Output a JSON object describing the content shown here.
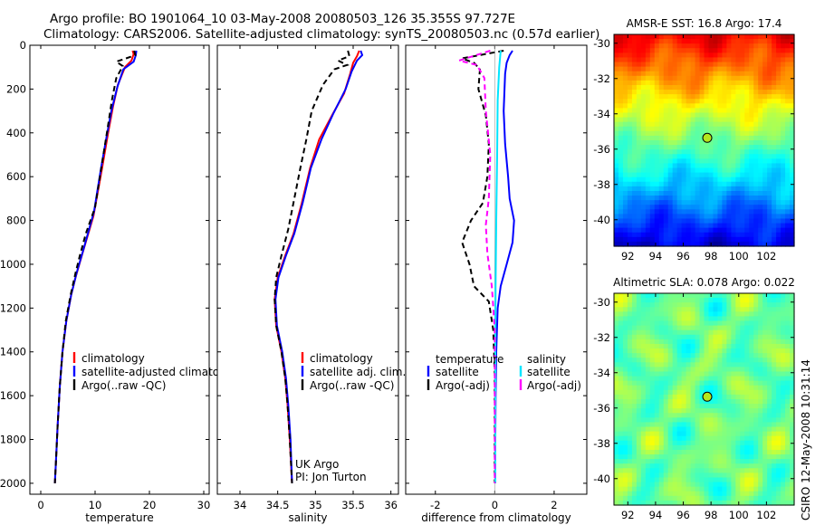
{
  "header": {
    "title_line1": "Argo profile: BO 1901064_10 03-May-2008 20080503_126 35.355S 97.727E",
    "title_line2": "Climatology: CARS2006. Satellite-adjusted climatology: synTS_20080503.nc (0.57d earlier)"
  },
  "side_label": "CSIRO 12-May-2008 10:31:14",
  "colors": {
    "climatology": "#ff0000",
    "satellite": "#0000ff",
    "argo": "#000000",
    "salinity_satellite": "#00e5ff",
    "salinity_argo": "#ff00ff"
  },
  "chart_data": [
    {
      "type": "line",
      "id": "temperature",
      "xlabel": "temperature",
      "ylabel": "",
      "xlim": [
        -2,
        31
      ],
      "ylim": [
        2050,
        0
      ],
      "xticks": [
        0,
        10,
        20,
        30
      ],
      "yticks": [
        0,
        200,
        400,
        600,
        800,
        1000,
        1200,
        1400,
        1600,
        1800,
        2000
      ],
      "legend": {
        "placement": "lower-right",
        "entries": [
          "climatology",
          "satellite-adjusted climatology",
          "Argo(..raw -QC)"
        ]
      },
      "series": [
        {
          "name": "climatology",
          "color": "#ff0000",
          "dash": "",
          "points": [
            [
              16.9,
              25
            ],
            [
              17.1,
              40
            ],
            [
              16.9,
              55
            ],
            [
              16.7,
              70
            ],
            [
              15.5,
              100
            ],
            [
              14.2,
              180
            ],
            [
              13.3,
              280
            ],
            [
              12.4,
              400
            ],
            [
              11.3,
              560
            ],
            [
              9.7,
              780
            ],
            [
              7.8,
              940
            ],
            [
              6.4,
              1060
            ],
            [
              5.6,
              1140
            ],
            [
              4.7,
              1260
            ],
            [
              4,
              1400
            ],
            [
              3.5,
              1560
            ],
            [
              3.1,
              1740
            ],
            [
              2.8,
              1900
            ],
            [
              2.6,
              2000
            ]
          ]
        },
        {
          "name": "satellite-adjusted climatology",
          "color": "#0000ff",
          "dash": "",
          "points": [
            [
              17.6,
              25
            ],
            [
              17.5,
              45
            ],
            [
              17.1,
              75
            ],
            [
              15.2,
              110
            ],
            [
              14.1,
              190
            ],
            [
              13,
              300
            ],
            [
              12.1,
              420
            ],
            [
              11.1,
              560
            ],
            [
              9.8,
              760
            ],
            [
              8,
              920
            ],
            [
              6.6,
              1040
            ],
            [
              5.6,
              1140
            ],
            [
              4.7,
              1260
            ],
            [
              4,
              1400
            ],
            [
              3.5,
              1560
            ],
            [
              3.1,
              1740
            ],
            [
              2.8,
              1900
            ],
            [
              2.6,
              2000
            ]
          ]
        },
        {
          "name": "Argo(..raw -QC)",
          "color": "#000000",
          "dash": "6,4",
          "points": [
            [
              17.2,
              25
            ],
            [
              17.4,
              45
            ],
            [
              15.7,
              60
            ],
            [
              13.9,
              75
            ],
            [
              15.1,
              95
            ],
            [
              13.9,
              150
            ],
            [
              13.1,
              250
            ],
            [
              12.3,
              380
            ],
            [
              11.4,
              520
            ],
            [
              10,
              740
            ],
            [
              8.3,
              860
            ],
            [
              7.2,
              960
            ],
            [
              6.4,
              1040
            ],
            [
              5.5,
              1140
            ],
            [
              4.6,
              1260
            ],
            [
              4,
              1400
            ],
            [
              3.5,
              1560
            ],
            [
              3.1,
              1740
            ],
            [
              2.8,
              1900
            ],
            [
              2.6,
              2000
            ]
          ]
        }
      ],
      "annotations": []
    },
    {
      "type": "line",
      "id": "salinity",
      "xlabel": "salinity",
      "ylabel": "",
      "xlim": [
        33.7,
        36.1
      ],
      "ylim": [
        2050,
        0
      ],
      "xticks": [
        34,
        34.5,
        35,
        35.5,
        36
      ],
      "xtick_labels": [
        "34",
        "34.5",
        "35",
        "35.5",
        "36"
      ],
      "yticks": [
        0,
        200,
        400,
        600,
        800,
        1000,
        1200,
        1400,
        1600,
        1800,
        2000
      ],
      "legend": {
        "placement": "lower-right",
        "entries": [
          "climatology",
          "satellite adj. clim.",
          "Argo(..raw -QC)"
        ]
      },
      "series": [
        {
          "name": "climatology",
          "color": "#ff0000",
          "dash": "",
          "points": [
            [
              35.58,
              25
            ],
            [
              35.55,
              50
            ],
            [
              35.5,
              80
            ],
            [
              35.46,
              130
            ],
            [
              35.38,
              220
            ],
            [
              35.22,
              320
            ],
            [
              35.05,
              430
            ],
            [
              34.93,
              560
            ],
            [
              34.82,
              720
            ],
            [
              34.71,
              860
            ],
            [
              34.6,
              960
            ],
            [
              34.5,
              1060
            ],
            [
              34.46,
              1160
            ],
            [
              34.48,
              1280
            ],
            [
              34.55,
              1400
            ],
            [
              34.6,
              1520
            ],
            [
              34.63,
              1640
            ],
            [
              34.66,
              1800
            ],
            [
              34.69,
              2000
            ]
          ]
        },
        {
          "name": "satellite adj. clim.",
          "color": "#0000ff",
          "dash": "",
          "points": [
            [
              35.6,
              25
            ],
            [
              35.62,
              45
            ],
            [
              35.55,
              70
            ],
            [
              35.48,
              120
            ],
            [
              35.4,
              200
            ],
            [
              35.24,
              310
            ],
            [
              35.08,
              430
            ],
            [
              34.94,
              560
            ],
            [
              34.83,
              720
            ],
            [
              34.72,
              860
            ],
            [
              34.61,
              960
            ],
            [
              34.51,
              1060
            ],
            [
              34.47,
              1160
            ],
            [
              34.49,
              1280
            ],
            [
              34.56,
              1400
            ],
            [
              34.61,
              1520
            ],
            [
              34.64,
              1640
            ],
            [
              34.67,
              1800
            ],
            [
              34.69,
              2000
            ]
          ]
        },
        {
          "name": "Argo(..raw -QC)",
          "color": "#000000",
          "dash": "6,4",
          "points": [
            [
              35.43,
              25
            ],
            [
              35.45,
              50
            ],
            [
              35.3,
              70
            ],
            [
              35.42,
              90
            ],
            [
              35.25,
              110
            ],
            [
              35.1,
              180
            ],
            [
              34.95,
              300
            ],
            [
              34.88,
              430
            ],
            [
              34.8,
              560
            ],
            [
              34.72,
              700
            ],
            [
              34.64,
              840
            ],
            [
              34.55,
              960
            ],
            [
              34.48,
              1060
            ],
            [
              34.46,
              1160
            ],
            [
              34.48,
              1280
            ],
            [
              34.55,
              1400
            ],
            [
              34.6,
              1520
            ],
            [
              34.63,
              1640
            ],
            [
              34.66,
              1800
            ],
            [
              34.69,
              2000
            ]
          ]
        }
      ],
      "annotations": [
        "UK Argo",
        "PI: Jon Turton"
      ]
    },
    {
      "type": "line",
      "id": "difference",
      "xlabel": "difference from climatology",
      "ylabel": "",
      "xlim": [
        -3,
        3.1
      ],
      "ylim": [
        2050,
        0
      ],
      "xticks": [
        -2,
        0,
        2
      ],
      "yticks": [
        0,
        200,
        400,
        600,
        800,
        1000,
        1200,
        1400,
        1600,
        1800,
        2000
      ],
      "legend": {
        "placement": "lower",
        "temperature_heading": "temperature",
        "salinity_heading": "salinity",
        "temperature_entries": [
          "satellite",
          "Argo(-adj)"
        ],
        "salinity_entries": [
          "satellite",
          "Argo(-adj)"
        ]
      },
      "series": [
        {
          "name": "temperature satellite",
          "color": "#0000ff",
          "dash": "",
          "points": [
            [
              0.6,
              25
            ],
            [
              0.5,
              45
            ],
            [
              0.4,
              80
            ],
            [
              0.35,
              130
            ],
            [
              0.3,
              300
            ],
            [
              0.35,
              450
            ],
            [
              0.45,
              600
            ],
            [
              0.5,
              700
            ],
            [
              0.65,
              800
            ],
            [
              0.6,
              900
            ],
            [
              0.4,
              1000
            ],
            [
              0.2,
              1100
            ],
            [
              0.1,
              1200
            ],
            [
              0.05,
              1400
            ],
            [
              0.03,
              1600
            ],
            [
              0.02,
              1800
            ],
            [
              0.02,
              2000
            ]
          ]
        },
        {
          "name": "temperature Argo(-adj)",
          "color": "#000000",
          "dash": "6,4",
          "points": [
            [
              0.3,
              25
            ],
            [
              -1.1,
              60
            ],
            [
              -0.7,
              80
            ],
            [
              -0.5,
              110
            ],
            [
              -0.55,
              200
            ],
            [
              -0.3,
              320
            ],
            [
              -0.2,
              450
            ],
            [
              -0.25,
              600
            ],
            [
              -0.4,
              720
            ],
            [
              -0.8,
              800
            ],
            [
              -1.1,
              900
            ],
            [
              -0.85,
              1000
            ],
            [
              -0.7,
              1100
            ],
            [
              -0.2,
              1170
            ],
            [
              -0.05,
              1300
            ],
            [
              0,
              1500
            ],
            [
              0,
              2000
            ]
          ]
        },
        {
          "name": "salinity satellite",
          "color": "#00e5ff",
          "dash": "",
          "points": [
            [
              0.2,
              25
            ],
            [
              0.15,
              100
            ],
            [
              0.1,
              250
            ],
            [
              0.08,
              500
            ],
            [
              0.05,
              800
            ],
            [
              0.03,
              1100
            ],
            [
              0.02,
              1400
            ],
            [
              0.02,
              2000
            ]
          ]
        },
        {
          "name": "salinity Argo(-adj)",
          "color": "#ff00ff",
          "dash": "6,4",
          "points": [
            [
              -0.15,
              25
            ],
            [
              -1.2,
              70
            ],
            [
              -0.6,
              90
            ],
            [
              -0.35,
              150
            ],
            [
              -0.3,
              300
            ],
            [
              -0.15,
              500
            ],
            [
              -0.2,
              700
            ],
            [
              -0.3,
              820
            ],
            [
              -0.25,
              950
            ],
            [
              -0.1,
              1100
            ],
            [
              0,
              1300
            ],
            [
              0,
              2000
            ]
          ]
        }
      ],
      "annotations": []
    }
  ],
  "maps": [
    {
      "id": "sst",
      "title": "AMSR-E SST: 16.8 Argo: 17.4",
      "xlim": [
        91,
        104
      ],
      "ylim": [
        -41.5,
        -29.5
      ],
      "xticks": [
        92,
        94,
        96,
        98,
        100,
        102
      ],
      "yticks": [
        -30,
        -32,
        -34,
        -36,
        -38,
        -40
      ],
      "marker": {
        "lon": 97.73,
        "lat": -35.36
      }
    },
    {
      "id": "sla",
      "title": "Altimetric SLA: 0.078 Argo: 0.022",
      "xlim": [
        91,
        104
      ],
      "ylim": [
        -41.5,
        -29.5
      ],
      "xticks": [
        92,
        94,
        96,
        98,
        100,
        102
      ],
      "yticks": [
        -30,
        -32,
        -34,
        -36,
        -38,
        -40
      ],
      "marker": {
        "lon": 97.73,
        "lat": -35.36
      }
    }
  ]
}
